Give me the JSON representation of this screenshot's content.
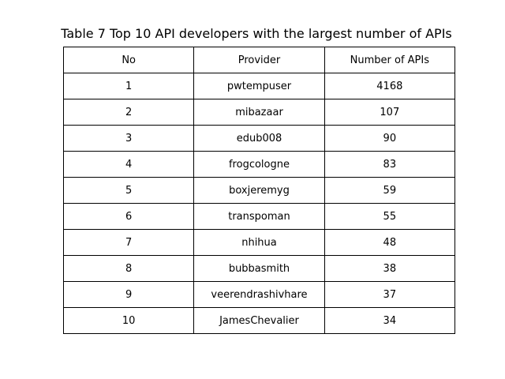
{
  "chart_data": {
    "type": "table",
    "title": "Table 7 Top 10 API developers with the largest number of APIs",
    "columns": [
      "No",
      "Provider",
      "Number of APIs"
    ],
    "rows": [
      [
        "1",
        "pwtempuser",
        "4168"
      ],
      [
        "2",
        "mibazaar",
        "107"
      ],
      [
        "3",
        "edub008",
        "90"
      ],
      [
        "4",
        "frogcologne",
        "83"
      ],
      [
        "5",
        "boxjeremyg",
        "59"
      ],
      [
        "6",
        "transpoman",
        "55"
      ],
      [
        "7",
        "nhihua",
        "48"
      ],
      [
        "8",
        "bubbasmith",
        "38"
      ],
      [
        "9",
        "veerendrashivhare",
        "37"
      ],
      [
        "10",
        "JamesChevalier",
        "34"
      ]
    ]
  }
}
